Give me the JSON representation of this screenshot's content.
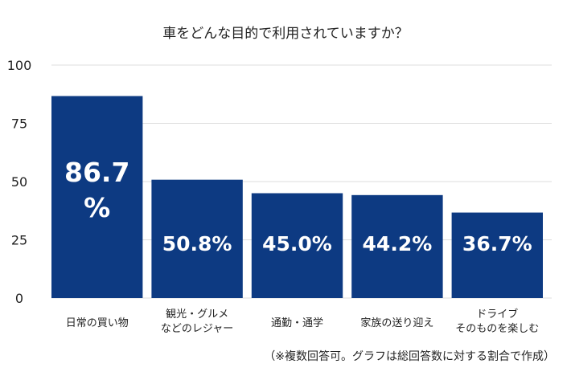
{
  "chart_data": {
    "type": "bar",
    "title": "車をどんな目的で利用されていますか？",
    "categories": [
      [
        "日常の買い物"
      ],
      [
        "観光・グルメ",
        "などのレジャー"
      ],
      [
        "通勤・通学"
      ],
      [
        "家族の送り迎え"
      ],
      [
        "ドライブ",
        "そのものを楽しむ"
      ]
    ],
    "values": [
      86.7,
      50.8,
      45.0,
      44.2,
      36.7
    ],
    "value_labels": [
      [
        "86.7",
        "%"
      ],
      [
        "50.8%"
      ],
      [
        "45.0%"
      ],
      [
        "44.2%"
      ],
      [
        "36.7%"
      ]
    ],
    "ylim": [
      0,
      100
    ],
    "yticks": [
      0,
      25,
      50,
      75,
      100
    ],
    "grid": true,
    "bar_color": "#0d3a82",
    "grid_color": "#dddddd"
  },
  "note": "（※複数回答可。グラフは総回答数に対する割合で作成）"
}
